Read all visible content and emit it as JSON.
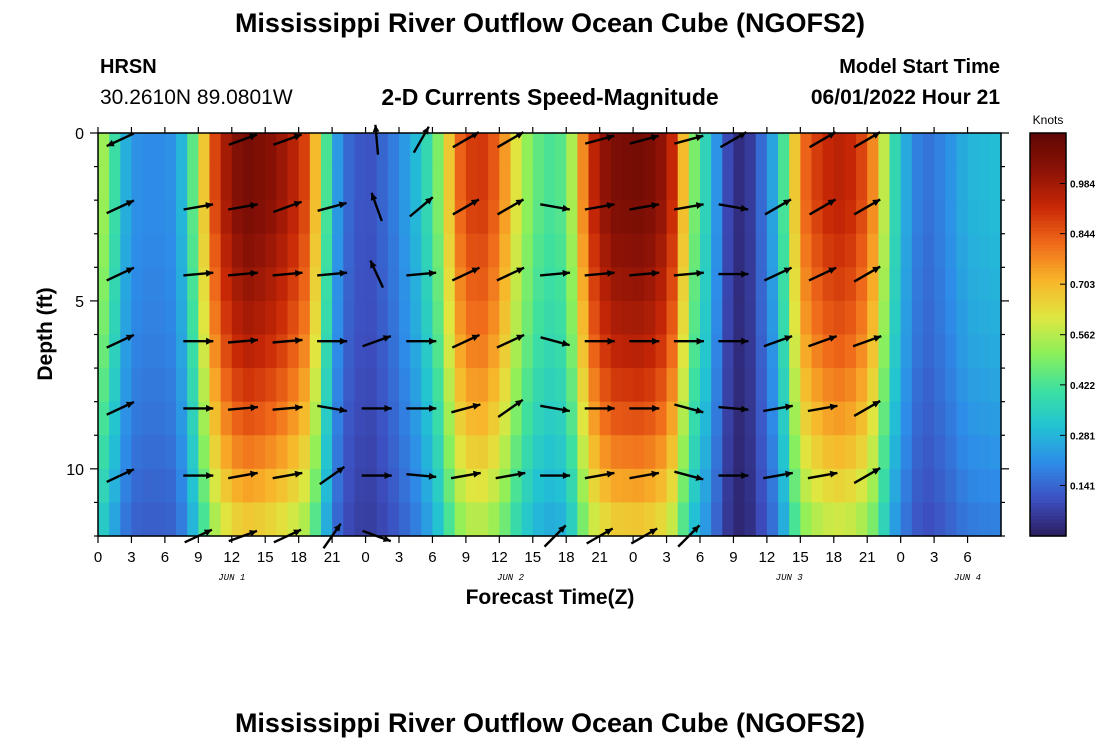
{
  "header": {
    "title": "Mississippi River Outflow Ocean Cube (NGOFS2)",
    "station": "HRSN",
    "coordinates": "30.2610N  89.0801W",
    "subtitle": "2-D Currents Speed-Magnitude",
    "start_label": "Model Start Time",
    "start_value": "06/01/2022 Hour 21"
  },
  "footer": {
    "title": "Mississippi River Outflow Ocean Cube (NGOFS2)"
  },
  "chart_data": {
    "type": "heatmap",
    "xlabel": "Forecast Time(Z)",
    "ylabel": "Depth (ft)",
    "x_unit": "hours",
    "xlim": [
      0,
      81
    ],
    "ylim": [
      12,
      0
    ],
    "y_inverted": true,
    "x_tick_labels": [
      "0",
      "3",
      "6",
      "9",
      "12",
      "15",
      "18",
      "21",
      "0",
      "3",
      "6",
      "9",
      "12",
      "15",
      "18",
      "21",
      "0",
      "3",
      "6",
      "9",
      "12",
      "15",
      "18",
      "21",
      "0",
      "3",
      "6"
    ],
    "y_tick_labels": [
      "0",
      "5",
      "10"
    ],
    "y_tick_values": [
      0,
      5,
      10
    ],
    "day_labels": [
      {
        "label": "JUN 1",
        "hour": 12
      },
      {
        "label": "JUN 2",
        "hour": 37
      },
      {
        "label": "JUN 3",
        "hour": 62
      },
      {
        "label": "JUN 4",
        "hour": 78
      }
    ],
    "colorbar": {
      "unit_label": "Knots",
      "min": 0.0,
      "max": 1.125,
      "tick_labels": [
        "0.141",
        "0.281",
        "0.422",
        "0.562",
        "0.703",
        "0.844",
        "0.984"
      ],
      "tick_values": [
        0.141,
        0.281,
        0.422,
        0.562,
        0.703,
        0.844,
        0.984
      ]
    },
    "colormap": [
      "#2b1c5e",
      "#3d4fc0",
      "#2e8ce8",
      "#22c2d4",
      "#3de0a0",
      "#8cf05a",
      "#e0e640",
      "#f8b42a",
      "#f06a1a",
      "#c82806",
      "#8c1206",
      "#600804"
    ],
    "speed_profile_surface": [
      {
        "h": 0,
        "v": 0.58
      },
      {
        "h": 1,
        "v": 0.48
      },
      {
        "h": 2,
        "v": 0.32
      },
      {
        "h": 3,
        "v": 0.22
      },
      {
        "h": 5,
        "v": 0.2
      },
      {
        "h": 7,
        "v": 0.22
      },
      {
        "h": 8,
        "v": 0.35
      },
      {
        "h": 9,
        "v": 0.55
      },
      {
        "h": 10,
        "v": 0.8
      },
      {
        "h": 11,
        "v": 0.95
      },
      {
        "h": 13,
        "v": 1.08
      },
      {
        "h": 15,
        "v": 1.05
      },
      {
        "h": 17,
        "v": 0.98
      },
      {
        "h": 19,
        "v": 0.85
      },
      {
        "h": 20,
        "v": 0.55
      },
      {
        "h": 21,
        "v": 0.3
      },
      {
        "h": 22,
        "v": 0.16
      },
      {
        "h": 24,
        "v": 0.1
      },
      {
        "h": 25,
        "v": 0.12
      },
      {
        "h": 27,
        "v": 0.2
      },
      {
        "h": 29,
        "v": 0.32
      },
      {
        "h": 31,
        "v": 0.55
      },
      {
        "h": 32,
        "v": 0.8
      },
      {
        "h": 34,
        "v": 0.92
      },
      {
        "h": 36,
        "v": 0.82
      },
      {
        "h": 38,
        "v": 0.55
      },
      {
        "h": 40,
        "v": 0.42
      },
      {
        "h": 42,
        "v": 0.45
      },
      {
        "h": 43,
        "v": 0.65
      },
      {
        "h": 44,
        "v": 0.9
      },
      {
        "h": 46,
        "v": 1.06
      },
      {
        "h": 49,
        "v": 1.08
      },
      {
        "h": 51,
        "v": 1.0
      },
      {
        "h": 52,
        "v": 0.85
      },
      {
        "h": 53,
        "v": 0.55
      },
      {
        "h": 55,
        "v": 0.3
      },
      {
        "h": 56,
        "v": 0.14
      },
      {
        "h": 57,
        "v": 0.04
      },
      {
        "h": 58,
        "v": 0.03
      },
      {
        "h": 59,
        "v": 0.1
      },
      {
        "h": 61,
        "v": 0.3
      },
      {
        "h": 62,
        "v": 0.55
      },
      {
        "h": 63,
        "v": 0.8
      },
      {
        "h": 65,
        "v": 0.92
      },
      {
        "h": 67,
        "v": 0.95
      },
      {
        "h": 69,
        "v": 0.85
      },
      {
        "h": 70,
        "v": 0.7
      },
      {
        "h": 71,
        "v": 0.45
      },
      {
        "h": 72,
        "v": 0.3
      },
      {
        "h": 73,
        "v": 0.22
      },
      {
        "h": 74,
        "v": 0.15
      },
      {
        "h": 76,
        "v": 0.2
      },
      {
        "h": 78,
        "v": 0.28
      },
      {
        "h": 81,
        "v": 0.3
      }
    ],
    "depth_factor": [
      {
        "d": 0,
        "f": 1.0
      },
      {
        "d": 2,
        "f": 1.0
      },
      {
        "d": 4,
        "f": 0.95
      },
      {
        "d": 6,
        "f": 0.9
      },
      {
        "d": 8,
        "f": 0.82
      },
      {
        "d": 10,
        "f": 0.72
      },
      {
        "d": 12,
        "f": 0.6
      }
    ],
    "vector_rows_depth_ft": [
      0.2,
      2.2,
      4.2,
      6.2,
      8.2,
      10.2,
      12.0
    ],
    "vector_times_h": [
      2,
      9,
      13,
      17,
      21,
      25,
      29,
      33,
      37,
      41,
      45,
      49,
      53,
      57,
      61,
      65,
      69
    ],
    "vector_directions_deg": [
      [
        205,
        null,
        20,
        20,
        null,
        95,
        60,
        30,
        30,
        null,
        15,
        15,
        15,
        30,
        null,
        30,
        30
      ],
      [
        25,
        10,
        10,
        20,
        15,
        110,
        40,
        30,
        30,
        -10,
        10,
        10,
        10,
        -10,
        30,
        30,
        30
      ],
      [
        25,
        5,
        5,
        5,
        5,
        115,
        5,
        25,
        25,
        5,
        5,
        5,
        5,
        0,
        25,
        25,
        30
      ],
      [
        25,
        0,
        5,
        5,
        0,
        20,
        0,
        25,
        25,
        -15,
        0,
        0,
        0,
        0,
        20,
        20,
        20
      ],
      [
        25,
        0,
        5,
        5,
        -10,
        0,
        0,
        15,
        35,
        -10,
        0,
        0,
        -15,
        -5,
        10,
        10,
        30
      ],
      [
        25,
        0,
        10,
        10,
        35,
        0,
        -5,
        10,
        10,
        0,
        10,
        10,
        -15,
        0,
        10,
        10,
        30
      ],
      [
        null,
        25,
        20,
        25,
        55,
        -20,
        null,
        null,
        null,
        45,
        30,
        30,
        45,
        null,
        null,
        null,
        null
      ]
    ]
  }
}
